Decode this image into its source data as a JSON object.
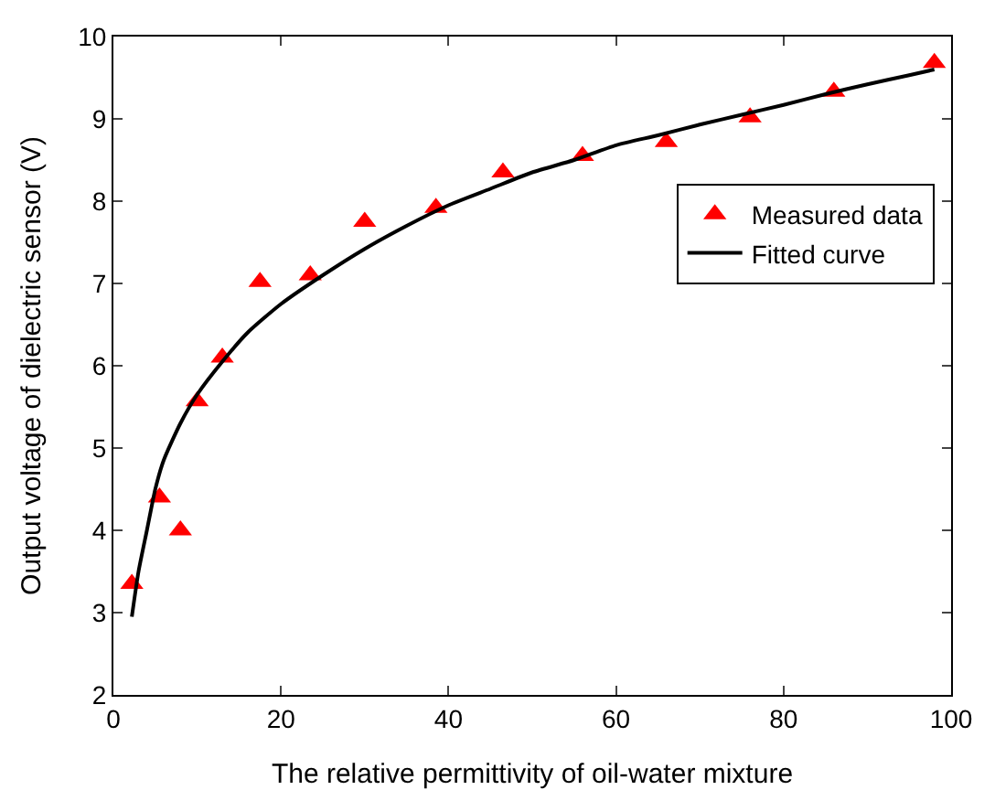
{
  "chart_data": {
    "type": "scatter",
    "xlabel": "The relative permittivity of oil-water mixture",
    "ylabel": "Output voltage of dielectric sensor (V)",
    "xlim": [
      0,
      100
    ],
    "ylim": [
      2,
      10
    ],
    "xticks": [
      0,
      20,
      40,
      60,
      80,
      100
    ],
    "yticks": [
      2,
      3,
      4,
      5,
      6,
      7,
      8,
      9,
      10
    ],
    "grid": false,
    "legend": "right",
    "series": [
      {
        "name": "Measured data",
        "marker": "triangle",
        "color": "#ff0000",
        "x": [
          2.2,
          5.5,
          8,
          10,
          13,
          17.5,
          23.5,
          30,
          38.5,
          46.5,
          56,
          66,
          76,
          86,
          98
        ],
        "values": [
          3.35,
          4.4,
          4.0,
          5.57,
          6.1,
          7.02,
          7.1,
          7.75,
          7.92,
          8.35,
          8.55,
          8.72,
          9.02,
          9.33,
          9.68
        ]
      },
      {
        "name": "Fitted curve",
        "type": "line",
        "marker": "none",
        "line_style": "solid",
        "color": "#000000",
        "x": [
          2.2,
          3,
          4,
          5,
          6,
          8,
          10,
          13,
          16,
          20,
          25,
          30,
          35,
          40,
          45,
          50,
          55,
          60,
          65,
          70,
          75,
          80,
          85,
          90,
          95,
          98
        ],
        "values": [
          2.95,
          3.5,
          4.0,
          4.5,
          4.85,
          5.3,
          5.65,
          6.05,
          6.4,
          6.75,
          7.1,
          7.42,
          7.7,
          7.95,
          8.15,
          8.35,
          8.5,
          8.68,
          8.8,
          8.93,
          9.05,
          9.17,
          9.3,
          9.42,
          9.53,
          9.6
        ]
      }
    ]
  }
}
